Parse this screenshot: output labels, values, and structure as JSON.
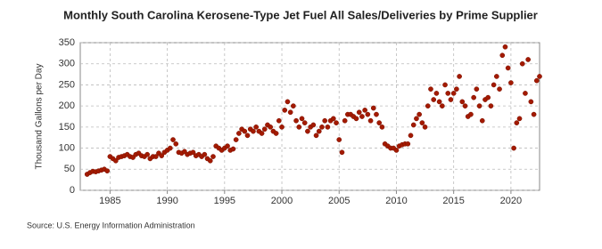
{
  "chart_data": {
    "type": "scatter",
    "title": "Monthly South Carolina Kerosene-Type Jet Fuel All Sales/Deliveries by Prime Supplier",
    "y_label": "Thousand Gallons per Day",
    "source": "Source: U.S. Energy Information Administration",
    "color": "#a31a00",
    "grid": true,
    "xlim": [
      1982.4,
      2022.5
    ],
    "xticks": [
      1985,
      1990,
      1995,
      2000,
      2005,
      2010,
      2015,
      2020
    ],
    "ylim": [
      0,
      350
    ],
    "yticks": [
      0,
      50,
      100,
      150,
      200,
      250,
      300,
      350
    ],
    "series": [
      {
        "name": "South Carolina Kerosene-Type Jet Fuel",
        "color": "#a31a00",
        "x": [
          1983,
          1983.25,
          1983.5,
          1983.75,
          1984,
          1984.25,
          1984.5,
          1984.75,
          1985,
          1985.25,
          1985.5,
          1985.75,
          1986,
          1986.25,
          1986.5,
          1986.75,
          1987,
          1987.25,
          1987.5,
          1987.75,
          1988,
          1988.25,
          1988.5,
          1988.75,
          1989,
          1989.25,
          1989.5,
          1989.75,
          1990,
          1990.25,
          1990.5,
          1990.75,
          1991,
          1991.25,
          1991.5,
          1991.75,
          1992,
          1992.25,
          1992.5,
          1992.75,
          1993,
          1993.25,
          1993.5,
          1993.75,
          1994,
          1994.25,
          1994.5,
          1994.75,
          1995,
          1995.25,
          1995.5,
          1995.75,
          1996,
          1996.25,
          1996.5,
          1996.75,
          1997,
          1997.25,
          1997.5,
          1997.75,
          1998,
          1998.25,
          1998.5,
          1998.75,
          1999,
          1999.25,
          1999.5,
          1999.75,
          2000,
          2000.25,
          2000.5,
          2000.75,
          2001,
          2001.25,
          2001.5,
          2001.75,
          2002,
          2002.25,
          2002.5,
          2002.75,
          2003,
          2003.25,
          2003.5,
          2003.75,
          2004,
          2004.25,
          2004.5,
          2004.75,
          2005,
          2005.25,
          2005.5,
          2005.75,
          2006,
          2006.25,
          2006.5,
          2006.75,
          2007,
          2007.25,
          2007.5,
          2007.75,
          2008,
          2008.25,
          2008.5,
          2008.75,
          2009,
          2009.25,
          2009.5,
          2009.75,
          2010,
          2010.25,
          2010.5,
          2010.75,
          2011,
          2011.25,
          2011.5,
          2011.75,
          2012,
          2012.25,
          2012.5,
          2012.75,
          2013,
          2013.25,
          2013.5,
          2013.75,
          2014,
          2014.25,
          2014.5,
          2014.75,
          2015,
          2015.25,
          2015.5,
          2015.75,
          2016,
          2016.25,
          2016.5,
          2016.75,
          2017,
          2017.25,
          2017.5,
          2017.75,
          2018,
          2018.25,
          2018.5,
          2018.75,
          2019,
          2019.25,
          2019.5,
          2019.75,
          2020,
          2020.25,
          2020.5,
          2020.75,
          2021,
          2021.25,
          2021.5,
          2021.75,
          2022,
          2022.25,
          2022.5
        ],
        "values": [
          38,
          42,
          45,
          44,
          46,
          48,
          50,
          46,
          80,
          75,
          70,
          78,
          80,
          82,
          85,
          80,
          78,
          85,
          88,
          82,
          80,
          85,
          75,
          80,
          80,
          88,
          82,
          90,
          95,
          100,
          120,
          110,
          90,
          88,
          92,
          85,
          88,
          90,
          82,
          85,
          80,
          85,
          75,
          70,
          80,
          105,
          100,
          95,
          100,
          105,
          95,
          98,
          120,
          135,
          145,
          140,
          130,
          145,
          140,
          150,
          140,
          135,
          145,
          155,
          150,
          140,
          135,
          165,
          150,
          190,
          210,
          185,
          200,
          165,
          150,
          170,
          160,
          140,
          150,
          155,
          130,
          140,
          150,
          165,
          150,
          165,
          170,
          160,
          120,
          90,
          165,
          180,
          180,
          175,
          170,
          185,
          175,
          190,
          180,
          165,
          195,
          180,
          160,
          150,
          110,
          105,
          100,
          100,
          95,
          105,
          108,
          110,
          110,
          130,
          155,
          170,
          180,
          160,
          150,
          200,
          240,
          215,
          230,
          210,
          200,
          250,
          230,
          215,
          230,
          240,
          270,
          210,
          200,
          175,
          180,
          220,
          240,
          200,
          165,
          215,
          220,
          200,
          250,
          270,
          240,
          320,
          340,
          290,
          255,
          100,
          160,
          170,
          300,
          230,
          310,
          210,
          180,
          260,
          270
        ]
      }
    ]
  }
}
